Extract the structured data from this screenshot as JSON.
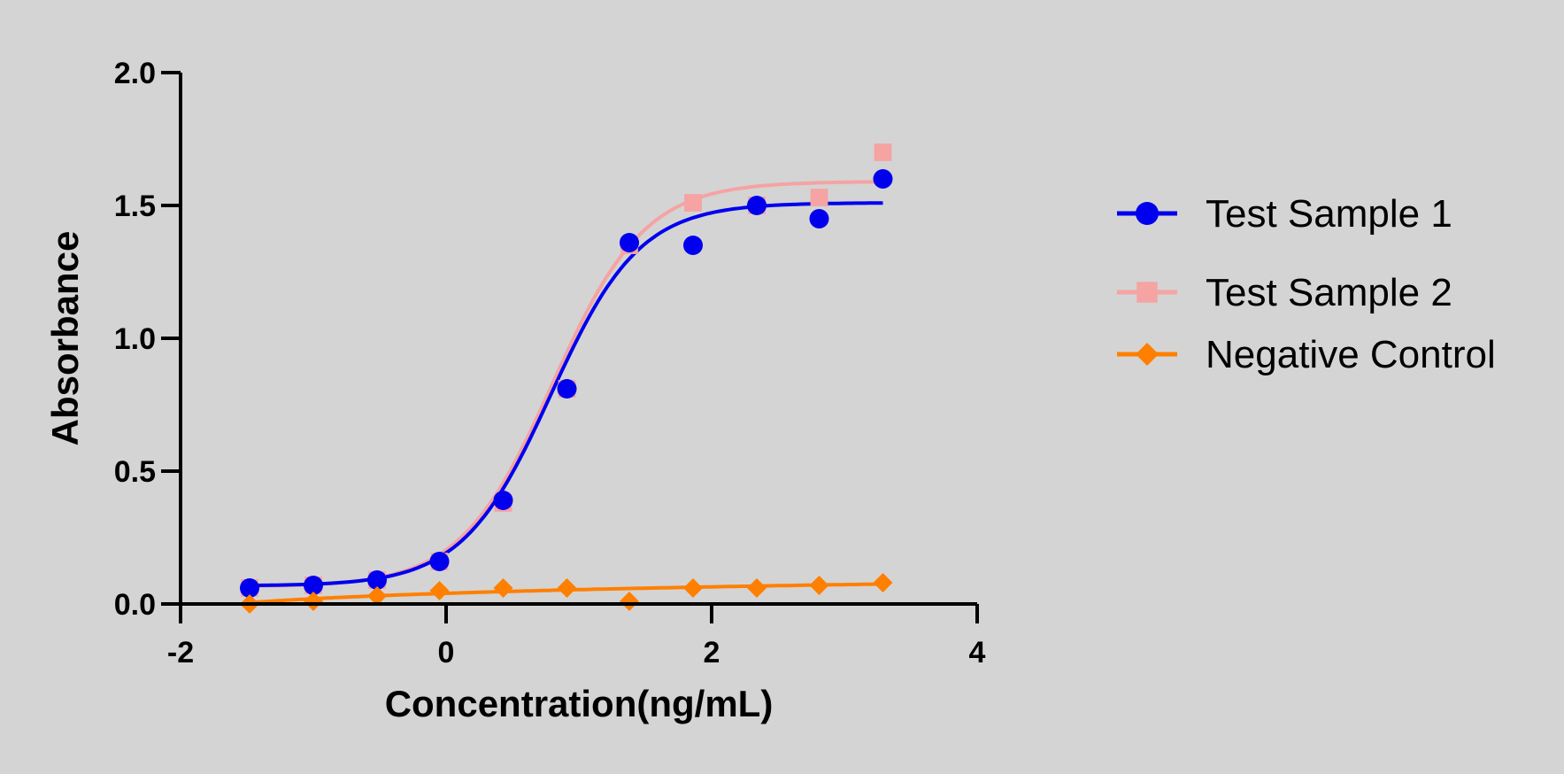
{
  "chart_data": {
    "type": "scatter",
    "title": "",
    "xlabel": "Concentration(ng/mL)",
    "ylabel": "Absorbance",
    "xlim": [
      -2,
      4
    ],
    "ylim": [
      0,
      2
    ],
    "x_ticks": [
      -2,
      0,
      2,
      4
    ],
    "x_tick_labels": [
      "-2",
      "0",
      "2",
      "4"
    ],
    "y_ticks": [
      0,
      0.5,
      1,
      1.5,
      2
    ],
    "y_tick_labels": [
      "0.0",
      "0.5",
      "1.0",
      "1.5",
      "2.0"
    ],
    "legend_position": "right",
    "series": [
      {
        "name": "Test Sample 2",
        "color": "#f5a3a3",
        "marker": "square",
        "x": [
          -1.48,
          -1.0,
          -0.52,
          -0.05,
          0.43,
          0.91,
          1.38,
          1.86,
          2.34,
          2.81,
          3.29
        ],
        "y": [
          0.06,
          0.07,
          0.09,
          0.16,
          0.38,
          0.81,
          1.35,
          1.51,
          1.5,
          1.53,
          1.7
        ],
        "fit_curve": {
          "bottom": 0.065,
          "top": 1.59,
          "ec50_x": 0.8,
          "hill": 1.25
        }
      },
      {
        "name": "Test Sample 1",
        "color": "#0000ee",
        "marker": "circle",
        "x": [
          -1.48,
          -1.0,
          -0.52,
          -0.05,
          0.43,
          0.91,
          1.38,
          1.86,
          2.34,
          2.81,
          3.29
        ],
        "y": [
          0.06,
          0.07,
          0.09,
          0.16,
          0.39,
          0.81,
          1.36,
          1.35,
          1.5,
          1.45,
          1.6
        ],
        "fit_curve": {
          "bottom": 0.068,
          "top": 1.51,
          "ec50_x": 0.79,
          "hill": 1.3
        }
      },
      {
        "name": "Negative Control",
        "color": "#ff7f00",
        "marker": "diamond",
        "x": [
          -1.48,
          -1.0,
          -0.52,
          -0.05,
          0.43,
          0.91,
          1.38,
          1.86,
          2.34,
          2.81,
          3.29
        ],
        "y": [
          0.0,
          0.01,
          0.03,
          0.05,
          0.06,
          0.06,
          0.01,
          0.06,
          0.06,
          0.07,
          0.08
        ],
        "fit_curve": {
          "type": "log",
          "start": [
            -1.48,
            0.005
          ],
          "end": [
            3.29,
            0.075
          ]
        }
      }
    ],
    "legend_order": [
      "Test Sample 1",
      "Test Sample 2",
      "Negative Control"
    ]
  }
}
